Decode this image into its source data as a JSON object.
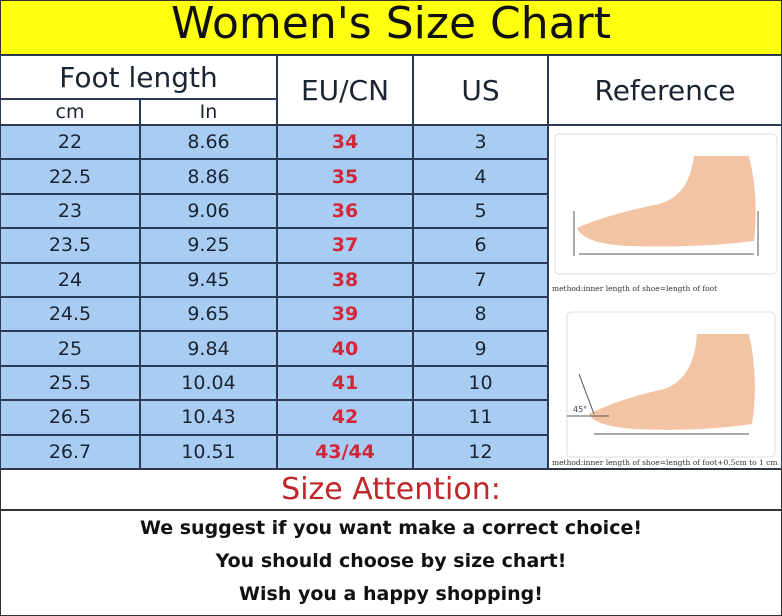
{
  "title": "Women's Size Chart",
  "chart_data": {
    "type": "table",
    "title": "Women's Size Chart",
    "headers": {
      "foot_length": "Foot length",
      "cm": "cm",
      "in": "In",
      "eu": "EU/CN",
      "us": "US",
      "reference": "Reference"
    },
    "rows": [
      {
        "cm": "22",
        "in": "8.66",
        "eu": "34",
        "us": "3"
      },
      {
        "cm": "22.5",
        "in": "8.86",
        "eu": "35",
        "us": "4"
      },
      {
        "cm": "23",
        "in": "9.06",
        "eu": "36",
        "us": "5"
      },
      {
        "cm": "23.5",
        "in": "9.25",
        "eu": "37",
        "us": "6"
      },
      {
        "cm": "24",
        "in": "9.45",
        "eu": "38",
        "us": "7"
      },
      {
        "cm": "24.5",
        "in": "9.65",
        "eu": "39",
        "us": "8"
      },
      {
        "cm": "25",
        "in": "9.84",
        "eu": "40",
        "us": "9"
      },
      {
        "cm": "25.5",
        "in": "10.04",
        "eu": "41",
        "us": "10"
      },
      {
        "cm": "26.5",
        "in": "10.43",
        "eu": "42",
        "us": "11"
      },
      {
        "cm": "26.7",
        "in": "10.51",
        "eu": "43/44",
        "us": "12"
      }
    ]
  },
  "reference": {
    "caption1": "method:inner length of shoe=length of foot",
    "caption2": "method:inner length of shoe=length of foot+0.5cm to 1 cm",
    "angle": "45°"
  },
  "attention": "Size Attention:",
  "messages": [
    "We suggest if you want make a correct choice!",
    "You should choose by size chart!",
    "Wish you a happy shopping!"
  ],
  "colors": {
    "title_bg": "#ffff10",
    "row_bg": "#a9cdf2",
    "eu_text": "#d4263a",
    "attention_text": "#c0262a"
  }
}
